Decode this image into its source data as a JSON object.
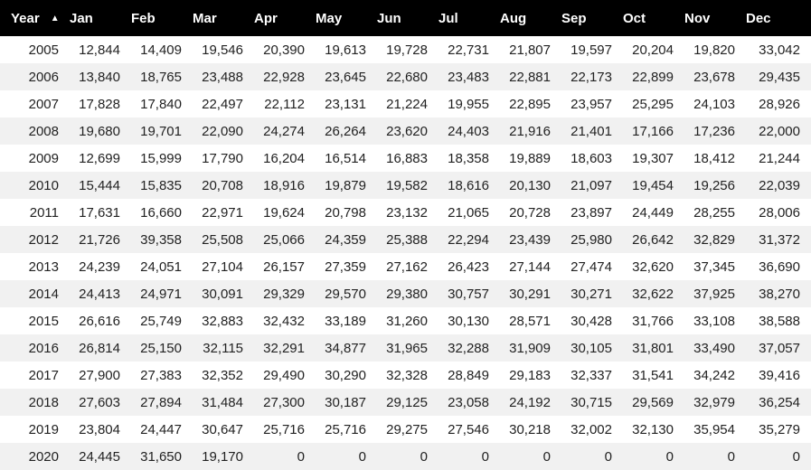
{
  "table": {
    "headers": [
      "Year",
      "Jan",
      "Feb",
      "Mar",
      "Apr",
      "May",
      "Jun",
      "Jul",
      "Aug",
      "Sep",
      "Oct",
      "Nov",
      "Dec"
    ],
    "sort_icon": "sort-ascending-icon",
    "colors": {
      "header_bg": "#000000",
      "header_text": "#ffffff",
      "stripe": "#f1f1f1"
    },
    "rows": [
      [
        "2005",
        "12,844",
        "14,409",
        "19,546",
        "20,390",
        "19,613",
        "19,728",
        "22,731",
        "21,807",
        "19,597",
        "20,204",
        "19,820",
        "33,042"
      ],
      [
        "2006",
        "13,840",
        "18,765",
        "23,488",
        "22,928",
        "23,645",
        "22,680",
        "23,483",
        "22,881",
        "22,173",
        "22,899",
        "23,678",
        "29,435"
      ],
      [
        "2007",
        "17,828",
        "17,840",
        "22,497",
        "22,112",
        "23,131",
        "21,224",
        "19,955",
        "22,895",
        "23,957",
        "25,295",
        "24,103",
        "28,926"
      ],
      [
        "2008",
        "19,680",
        "19,701",
        "22,090",
        "24,274",
        "26,264",
        "23,620",
        "24,403",
        "21,916",
        "21,401",
        "17,166",
        "17,236",
        "22,000"
      ],
      [
        "2009",
        "12,699",
        "15,999",
        "17,790",
        "16,204",
        "16,514",
        "16,883",
        "18,358",
        "19,889",
        "18,603",
        "19,307",
        "18,412",
        "21,244"
      ],
      [
        "2010",
        "15,444",
        "15,835",
        "20,708",
        "18,916",
        "19,879",
        "19,582",
        "18,616",
        "20,130",
        "21,097",
        "19,454",
        "19,256",
        "22,039"
      ],
      [
        "2011",
        "17,631",
        "16,660",
        "22,971",
        "19,624",
        "20,798",
        "23,132",
        "21,065",
        "20,728",
        "23,897",
        "24,449",
        "28,255",
        "28,006"
      ],
      [
        "2012",
        "21,726",
        "39,358",
        "25,508",
        "25,066",
        "24,359",
        "25,388",
        "22,294",
        "23,439",
        "25,980",
        "26,642",
        "32,829",
        "31,372"
      ],
      [
        "2013",
        "24,239",
        "24,051",
        "27,104",
        "26,157",
        "27,359",
        "27,162",
        "26,423",
        "27,144",
        "27,474",
        "32,620",
        "37,345",
        "36,690"
      ],
      [
        "2014",
        "24,413",
        "24,971",
        "30,091",
        "29,329",
        "29,570",
        "29,380",
        "30,757",
        "30,291",
        "30,271",
        "32,622",
        "37,925",
        "38,270"
      ],
      [
        "2015",
        "26,616",
        "25,749",
        "32,883",
        "32,432",
        "33,189",
        "31,260",
        "30,130",
        "28,571",
        "30,428",
        "31,766",
        "33,108",
        "38,588"
      ],
      [
        "2016",
        "26,814",
        "25,150",
        "32,115",
        "32,291",
        "34,877",
        "31,965",
        "32,288",
        "31,909",
        "30,105",
        "31,801",
        "33,490",
        "37,057"
      ],
      [
        "2017",
        "27,900",
        "27,383",
        "32,352",
        "29,490",
        "30,290",
        "32,328",
        "28,849",
        "29,183",
        "32,337",
        "31,541",
        "34,242",
        "39,416"
      ],
      [
        "2018",
        "27,603",
        "27,894",
        "31,484",
        "27,300",
        "30,187",
        "29,125",
        "23,058",
        "24,192",
        "30,715",
        "29,569",
        "32,979",
        "36,254"
      ],
      [
        "2019",
        "23,804",
        "24,447",
        "30,647",
        "25,716",
        "25,716",
        "29,275",
        "27,546",
        "30,218",
        "32,002",
        "32,130",
        "35,954",
        "35,279"
      ],
      [
        "2020",
        "24,445",
        "31,650",
        "19,170",
        "0",
        "0",
        "0",
        "0",
        "0",
        "0",
        "0",
        "0",
        "0"
      ]
    ]
  }
}
